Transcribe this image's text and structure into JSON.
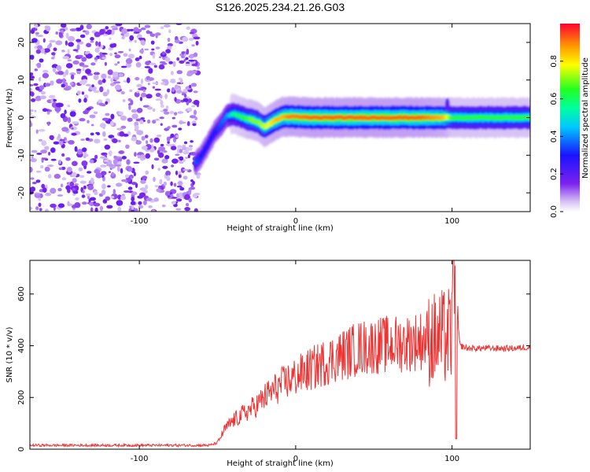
{
  "title": "S126.2025.234.21.26.G03",
  "chart_data": [
    {
      "type": "heatmap",
      "xlabel": "Height of straight line (km)",
      "ylabel": "Frequency (Hz)",
      "xlim": [
        -170,
        150
      ],
      "ylim": [
        -25,
        25
      ],
      "x_ticks": [
        -100,
        0,
        100
      ],
      "y_ticks": [
        -20,
        -10,
        0,
        10,
        20
      ],
      "colorbar_label": "Normalized spectral amplitude",
      "colorbar_ticks": [
        0.0,
        0.2,
        0.4,
        0.6,
        0.8
      ],
      "colorbar_range": [
        0,
        1
      ],
      "noise_region_x": [
        -170,
        -62
      ],
      "ridge_x": [
        -64,
        -60,
        -56,
        -52,
        -48,
        -44,
        -40,
        -36,
        -32,
        -28,
        -24,
        -20,
        -16,
        -12,
        -8,
        -4,
        0,
        10,
        20,
        40,
        60,
        80,
        95,
        100,
        120,
        150
      ],
      "ridge_freq": [
        -12,
        -10,
        -7,
        -4,
        -2,
        0.5,
        1,
        0.5,
        -0.3,
        -0.6,
        -1.2,
        -2.5,
        -1.5,
        -0.5,
        0.2,
        0.3,
        0.2,
        0,
        0,
        0,
        0,
        0,
        0,
        0,
        0,
        0
      ],
      "ridge_amp": [
        0.35,
        0.3,
        0.3,
        0.3,
        0.35,
        0.4,
        0.55,
        0.6,
        0.65,
        0.7,
        0.7,
        0.75,
        0.8,
        0.85,
        0.85,
        0.9,
        0.9,
        0.92,
        0.92,
        0.92,
        0.92,
        0.92,
        0.85,
        0.65,
        0.65,
        0.65
      ]
    },
    {
      "type": "line",
      "xlabel": "Height of straight line (km)",
      "ylabel": "SNR (10 * v/v)",
      "xlim": [
        -170,
        150
      ],
      "ylim": [
        0,
        730
      ],
      "x_ticks": [
        -100,
        0,
        100
      ],
      "y_ticks": [
        0,
        200,
        400,
        600
      ],
      "color": "#ee3333",
      "x": [
        -170,
        -150,
        -130,
        -110,
        -90,
        -70,
        -55,
        -50,
        -45,
        -40,
        -35,
        -30,
        -25,
        -20,
        -15,
        -10,
        -5,
        0,
        10,
        20,
        30,
        40,
        50,
        60,
        70,
        80,
        85,
        90,
        95,
        100,
        102,
        105,
        110,
        120,
        130,
        140,
        150
      ],
      "y": [
        15,
        15,
        15,
        15,
        15,
        15,
        15,
        25,
        80,
        110,
        130,
        150,
        170,
        200,
        225,
        245,
        265,
        280,
        310,
        340,
        365,
        390,
        400,
        405,
        410,
        420,
        430,
        420,
        430,
        440,
        600,
        400,
        390,
        390,
        390,
        390,
        395
      ]
    }
  ]
}
